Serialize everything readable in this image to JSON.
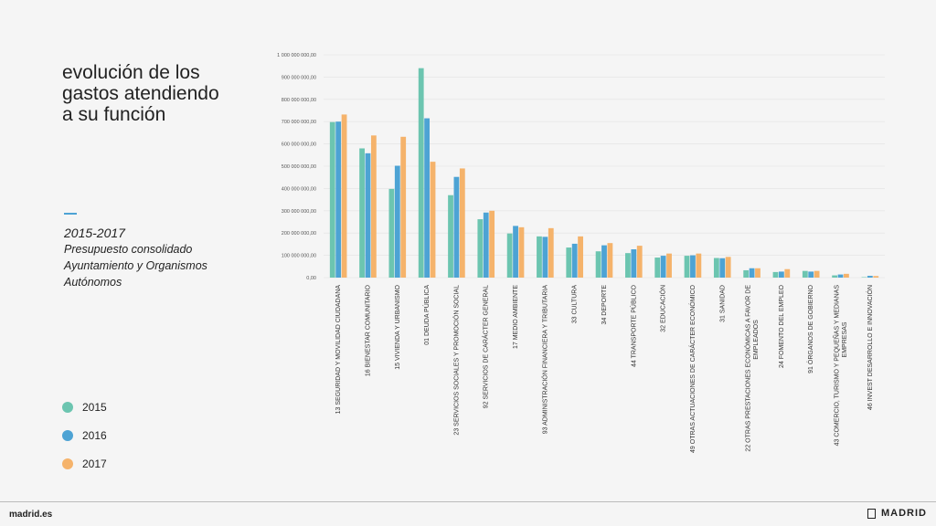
{
  "title": "evolución de los\ngastos atendiendo\na su función",
  "subtitle": {
    "years": "2015-2017",
    "line1": "Presupuesto consolidado",
    "line2": "Ayuntamiento y Organismos",
    "line3": "Autónomos"
  },
  "footer": {
    "site": "madrid.es",
    "brand": "MADRID"
  },
  "colors": {
    "2015": "#6cc5b0",
    "2016": "#4da3d4",
    "2017": "#f5b36b",
    "accent": "#4da3d4"
  },
  "chart_data": {
    "type": "bar",
    "ylim": [
      0,
      1000000000
    ],
    "yticks": [
      "0,00",
      "100 000 000,00",
      "200 000 000,00",
      "300 000 000,00",
      "400 000 000,00",
      "500 000 000,00",
      "600 000 000,00",
      "700 000 000,00",
      "800 000 000,00",
      "900 000 000,00",
      "1 000 000 000,00"
    ],
    "grid": true,
    "legend_position": "left",
    "categories": [
      "13 SEGURIDAD Y MOVILIDAD CIUDADANA",
      "16 BIENESTAR COMUNITARIO",
      "15 VIVIENDA Y URBANISMO",
      "01 DEUDA PÚBLICA",
      "23 SERVICIOS SOCIALES Y PROMOCIÓN SOCIAL",
      "92 SERVICIOS DE CARÁCTER GENERAL",
      "17 MEDIO AMBIENTE",
      "93 ADMINISTRACIÓN FINANCIERA Y TRIBUTARIA",
      "33 CULTURA",
      "34 DEPORTE",
      "44 TRANSPORTE PÚBLICO",
      "32 EDUCACIÓN",
      "49 OTRAS ACTUACIONES DE CARÁCTER ECONÓMICO",
      "31 SANIDAD",
      "22 OTRAS PRESTACIONES ECONÓMICAS A FAVOR DE|EMPLEADOS",
      "24 FOMENTO DEL EMPLEO",
      "91 ÓRGANOS DE GOBIERNO",
      "43 COMERCIO, TURISMO Y PEQUEÑAS Y MEDIANAS|EMPRESAS",
      "46 INVEST DESARROLLO E INNOVACIÓN"
    ],
    "series": [
      {
        "name": "2015",
        "values": [
          698000000,
          580000000,
          398000000,
          940000000,
          370000000,
          262000000,
          198000000,
          185000000,
          135000000,
          118000000,
          110000000,
          90000000,
          98000000,
          88000000,
          33000000,
          25000000,
          30000000,
          10000000,
          2000000
        ]
      },
      {
        "name": "2016",
        "values": [
          700000000,
          558000000,
          502000000,
          715000000,
          452000000,
          292000000,
          232000000,
          183000000,
          152000000,
          145000000,
          127000000,
          98000000,
          100000000,
          87000000,
          42000000,
          27000000,
          27000000,
          14000000,
          8000000
        ]
      },
      {
        "name": "2017",
        "values": [
          732000000,
          638000000,
          632000000,
          520000000,
          490000000,
          300000000,
          226000000,
          222000000,
          185000000,
          155000000,
          143000000,
          108000000,
          108000000,
          93000000,
          42000000,
          38000000,
          30000000,
          17000000,
          7000000
        ]
      }
    ]
  }
}
